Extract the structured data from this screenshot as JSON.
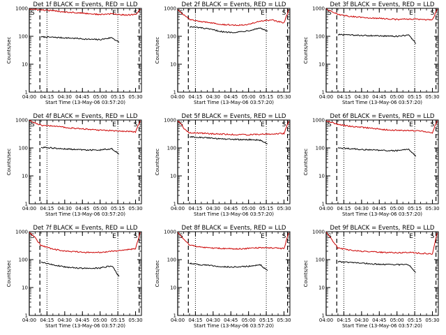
{
  "figure": {
    "background": "#ffffff",
    "colors": {
      "events": "#000000",
      "lld": "#cc0000"
    }
  },
  "chart_data": [
    {
      "type": "line",
      "title": "Det 1f BLACK = Events, RED = LLD",
      "xlabel": "Start Time (13-May-06 03:57:20)",
      "ylabel": "Counts/sec",
      "xlim": [
        "04:00",
        "05:35"
      ],
      "ylim": [
        1,
        1000
      ],
      "yscale": "log",
      "xticks": [
        "04:00",
        "04:15",
        "04:30",
        "04:45",
        "05:00",
        "05:15",
        "05:30"
      ],
      "yticks": [
        "1",
        "10",
        "100",
        "1000"
      ],
      "markers": [
        {
          "label": "S",
          "time": "04:00",
          "style": "solid"
        },
        {
          "label": "",
          "time": "04:09",
          "style": "dashed"
        },
        {
          "label": "",
          "time": "04:15",
          "style": "dotted"
        },
        {
          "label": "E",
          "time": "05:15",
          "style": "dotted"
        },
        {
          "label": "S",
          "time": "05:33",
          "style": "dashed"
        }
      ],
      "series": [
        {
          "name": "Events",
          "color": "#000000",
          "x": [
            "04:10",
            "04:20",
            "04:30",
            "04:40",
            "04:50",
            "05:00",
            "05:10",
            "05:16"
          ],
          "y": [
            95,
            92,
            88,
            84,
            78,
            76,
            90,
            60
          ]
        },
        {
          "name": "LLD",
          "color": "#cc0000",
          "x": [
            "04:00",
            "04:10",
            "04:20",
            "04:30",
            "04:40",
            "04:50",
            "05:00",
            "05:10",
            "05:20",
            "05:30",
            "05:34"
          ],
          "y": [
            950,
            880,
            820,
            750,
            700,
            650,
            600,
            640,
            580,
            600,
            950
          ]
        }
      ]
    },
    {
      "type": "line",
      "title": "Det 2f BLACK = Events, RED = LLD",
      "xlabel": "Start Time (13-May-06 03:57:20)",
      "ylabel": "Counts/sec",
      "xlim": [
        "04:00",
        "05:35"
      ],
      "ylim": [
        1,
        1000
      ],
      "yscale": "log",
      "xticks": [
        "04:00",
        "04:15",
        "04:30",
        "04:45",
        "05:00",
        "05:15",
        "05:30"
      ],
      "yticks": [
        "1",
        "10",
        "100",
        "1000"
      ],
      "markers": [
        {
          "label": "S",
          "time": "04:00",
          "style": "solid"
        },
        {
          "label": "",
          "time": "04:09",
          "style": "dashed"
        },
        {
          "label": "",
          "time": "04:15",
          "style": "dotted"
        },
        {
          "label": "E",
          "time": "05:15",
          "style": "dotted"
        },
        {
          "label": "S",
          "time": "05:33",
          "style": "dashed"
        }
      ],
      "series": [
        {
          "name": "Events",
          "color": "#000000",
          "x": [
            "04:10",
            "04:20",
            "04:30",
            "04:40",
            "04:50",
            "05:00",
            "05:10",
            "05:16"
          ],
          "y": [
            220,
            200,
            170,
            140,
            140,
            160,
            200,
            150
          ]
        },
        {
          "name": "LLD",
          "color": "#cc0000",
          "x": [
            "04:00",
            "04:05",
            "04:10",
            "04:20",
            "04:30",
            "04:40",
            "04:50",
            "05:00",
            "05:10",
            "05:20",
            "05:30",
            "05:34"
          ],
          "y": [
            900,
            600,
            400,
            330,
            300,
            260,
            250,
            270,
            350,
            380,
            300,
            900
          ]
        }
      ]
    },
    {
      "type": "line",
      "title": "Det 3f BLACK = Events, RED = LLD",
      "xlabel": "Start Time (13-May-06 03:57:20)",
      "ylabel": "Counts/sec",
      "xlim": [
        "04:00",
        "05:35"
      ],
      "ylim": [
        1,
        1000
      ],
      "yscale": "log",
      "xticks": [
        "04:00",
        "04:15",
        "04:30",
        "04:45",
        "05:00",
        "05:15",
        "05:30"
      ],
      "yticks": [
        "1",
        "10",
        "100",
        "1000"
      ],
      "markers": [
        {
          "label": "S",
          "time": "04:00",
          "style": "solid"
        },
        {
          "label": "",
          "time": "04:09",
          "style": "dashed"
        },
        {
          "label": "",
          "time": "04:15",
          "style": "dotted"
        },
        {
          "label": "E",
          "time": "05:15",
          "style": "dotted"
        },
        {
          "label": "S",
          "time": "05:33",
          "style": "dashed"
        }
      ],
      "series": [
        {
          "name": "Events",
          "color": "#000000",
          "x": [
            "04:10",
            "04:20",
            "04:30",
            "04:40",
            "04:50",
            "05:00",
            "05:10",
            "05:16"
          ],
          "y": [
            115,
            110,
            108,
            105,
            102,
            100,
            110,
            55
          ]
        },
        {
          "name": "LLD",
          "color": "#cc0000",
          "x": [
            "04:00",
            "04:10",
            "04:20",
            "04:30",
            "04:40",
            "04:50",
            "05:00",
            "05:10",
            "05:20",
            "05:30",
            "05:34"
          ],
          "y": [
            950,
            600,
            520,
            480,
            450,
            430,
            400,
            420,
            400,
            380,
            950
          ]
        }
      ]
    },
    {
      "type": "line",
      "title": "Det 4f BLACK = Events, RED = LLD",
      "xlabel": "Start Time (13-May-06 03:57:20)",
      "ylabel": "Counts/sec",
      "xlim": [
        "04:00",
        "05:35"
      ],
      "ylim": [
        1,
        1000
      ],
      "yscale": "log",
      "xticks": [
        "04:00",
        "04:15",
        "04:30",
        "04:45",
        "05:00",
        "05:15",
        "05:30"
      ],
      "yticks": [
        "1",
        "10",
        "100",
        "1000"
      ],
      "markers": [
        {
          "label": "S",
          "time": "04:00",
          "style": "solid"
        },
        {
          "label": "",
          "time": "04:09",
          "style": "dashed"
        },
        {
          "label": "",
          "time": "04:15",
          "style": "dotted"
        },
        {
          "label": "E",
          "time": "05:15",
          "style": "dotted"
        },
        {
          "label": "S",
          "time": "05:33",
          "style": "dashed"
        }
      ],
      "series": [
        {
          "name": "Events",
          "color": "#000000",
          "x": [
            "04:10",
            "04:20",
            "04:30",
            "04:40",
            "04:50",
            "05:00",
            "05:10",
            "05:16"
          ],
          "y": [
            105,
            100,
            92,
            88,
            85,
            84,
            95,
            60
          ]
        },
        {
          "name": "LLD",
          "color": "#cc0000",
          "x": [
            "04:00",
            "04:10",
            "04:20",
            "04:30",
            "04:40",
            "04:50",
            "05:00",
            "05:10",
            "05:20",
            "05:30",
            "05:34"
          ],
          "y": [
            950,
            650,
            600,
            550,
            500,
            470,
            430,
            420,
            400,
            380,
            950
          ]
        }
      ]
    },
    {
      "type": "line",
      "title": "Det 5f BLACK = Events, RED = LLD",
      "xlabel": "Start Time (13-May-06 03:57:20)",
      "ylabel": "Counts/sec",
      "xlim": [
        "04:00",
        "05:35"
      ],
      "ylim": [
        1,
        1000
      ],
      "yscale": "log",
      "xticks": [
        "04:00",
        "04:15",
        "04:30",
        "04:45",
        "05:00",
        "05:15",
        "05:30"
      ],
      "yticks": [
        "1",
        "10",
        "100",
        "1000"
      ],
      "markers": [
        {
          "label": "S",
          "time": "04:00",
          "style": "solid"
        },
        {
          "label": "",
          "time": "04:09",
          "style": "dashed"
        },
        {
          "label": "",
          "time": "04:15",
          "style": "dotted"
        },
        {
          "label": "E",
          "time": "05:15",
          "style": "dotted"
        },
        {
          "label": "S",
          "time": "05:33",
          "style": "dashed"
        }
      ],
      "series": [
        {
          "name": "Events",
          "color": "#000000",
          "x": [
            "04:10",
            "04:20",
            "04:30",
            "04:40",
            "04:50",
            "05:00",
            "05:10",
            "05:16"
          ],
          "y": [
            250,
            240,
            220,
            210,
            200,
            200,
            190,
            140
          ]
        },
        {
          "name": "LLD",
          "color": "#cc0000",
          "x": [
            "04:00",
            "04:03",
            "04:06",
            "04:10",
            "04:20",
            "04:30",
            "04:40",
            "04:50",
            "05:00",
            "05:10",
            "05:20",
            "05:30",
            "05:34"
          ],
          "y": [
            950,
            700,
            450,
            350,
            340,
            320,
            310,
            300,
            300,
            310,
            320,
            330,
            900
          ]
        }
      ]
    },
    {
      "type": "line",
      "title": "Det 6f BLACK = Events, RED = LLD",
      "xlabel": "Start Time (13-May-06 03:57:20)",
      "ylabel": "Counts/sec",
      "xlim": [
        "04:00",
        "05:35"
      ],
      "ylim": [
        1,
        1000
      ],
      "yscale": "log",
      "xticks": [
        "04:00",
        "04:15",
        "04:30",
        "04:45",
        "05:00",
        "05:15",
        "05:30"
      ],
      "yticks": [
        "1",
        "10",
        "100",
        "1000"
      ],
      "markers": [
        {
          "label": "S",
          "time": "04:00",
          "style": "solid"
        },
        {
          "label": "",
          "time": "04:09",
          "style": "dashed"
        },
        {
          "label": "",
          "time": "04:15",
          "style": "dotted"
        },
        {
          "label": "E",
          "time": "05:15",
          "style": "dotted"
        },
        {
          "label": "S",
          "time": "05:33",
          "style": "dashed"
        }
      ],
      "series": [
        {
          "name": "Events",
          "color": "#000000",
          "x": [
            "04:10",
            "04:20",
            "04:30",
            "04:40",
            "04:50",
            "05:00",
            "05:10",
            "05:16"
          ],
          "y": [
            100,
            95,
            88,
            85,
            80,
            80,
            88,
            50
          ]
        },
        {
          "name": "LLD",
          "color": "#cc0000",
          "x": [
            "04:00",
            "04:10",
            "04:20",
            "04:30",
            "04:40",
            "04:50",
            "05:00",
            "05:10",
            "05:20",
            "05:30",
            "05:34"
          ],
          "y": [
            950,
            700,
            600,
            550,
            500,
            450,
            430,
            420,
            400,
            350,
            950
          ]
        }
      ]
    },
    {
      "type": "line",
      "title": "Det 7f BLACK = Events, RED = LLD",
      "xlabel": "Start Time (13-May-06 03:57:20)",
      "ylabel": "Counts/sec",
      "xlim": [
        "04:00",
        "05:35"
      ],
      "ylim": [
        1,
        1000
      ],
      "yscale": "log",
      "xticks": [
        "04:00",
        "04:15",
        "04:30",
        "04:45",
        "05:00",
        "05:15",
        "05:30"
      ],
      "yticks": [
        "1",
        "10",
        "100",
        "1000"
      ],
      "markers": [
        {
          "label": "S",
          "time": "04:00",
          "style": "solid"
        },
        {
          "label": "",
          "time": "04:09",
          "style": "dashed"
        },
        {
          "label": "",
          "time": "04:15",
          "style": "dotted"
        },
        {
          "label": "E",
          "time": "05:15",
          "style": "dotted"
        },
        {
          "label": "S",
          "time": "05:33",
          "style": "dashed"
        }
      ],
      "series": [
        {
          "name": "Events",
          "color": "#000000",
          "x": [
            "04:10",
            "04:20",
            "04:30",
            "04:40",
            "04:50",
            "05:00",
            "05:10",
            "05:16"
          ],
          "y": [
            80,
            65,
            55,
            50,
            48,
            50,
            60,
            25
          ]
        },
        {
          "name": "LLD",
          "color": "#cc0000",
          "x": [
            "04:00",
            "04:05",
            "04:10",
            "04:20",
            "04:30",
            "04:40",
            "04:50",
            "05:00",
            "05:10",
            "05:20",
            "05:30",
            "05:34"
          ],
          "y": [
            950,
            600,
            320,
            240,
            200,
            190,
            180,
            180,
            200,
            220,
            250,
            950
          ]
        }
      ]
    },
    {
      "type": "line",
      "title": "Det 8f BLACK = Events, RED = LLD",
      "xlabel": "Start Time (13-May-06 03:57:20)",
      "ylabel": "Counts/sec",
      "xlim": [
        "04:00",
        "05:35"
      ],
      "ylim": [
        1,
        1000
      ],
      "yscale": "log",
      "xticks": [
        "04:00",
        "04:15",
        "04:30",
        "04:45",
        "05:00",
        "05:15",
        "05:30"
      ],
      "yticks": [
        "1",
        "10",
        "100",
        "1000"
      ],
      "markers": [
        {
          "label": "S",
          "time": "04:00",
          "style": "solid"
        },
        {
          "label": "",
          "time": "04:09",
          "style": "dashed"
        },
        {
          "label": "",
          "time": "04:15",
          "style": "dotted"
        },
        {
          "label": "E",
          "time": "05:15",
          "style": "dotted"
        },
        {
          "label": "S",
          "time": "05:33",
          "style": "dashed"
        }
      ],
      "series": [
        {
          "name": "Events",
          "color": "#000000",
          "x": [
            "04:10",
            "04:20",
            "04:30",
            "04:40",
            "04:50",
            "05:00",
            "05:10",
            "05:16"
          ],
          "y": [
            75,
            65,
            60,
            55,
            55,
            58,
            65,
            40
          ]
        },
        {
          "name": "LLD",
          "color": "#cc0000",
          "x": [
            "04:00",
            "04:05",
            "04:10",
            "04:20",
            "04:30",
            "04:40",
            "04:50",
            "05:00",
            "05:10",
            "05:20",
            "05:30",
            "05:34"
          ],
          "y": [
            950,
            550,
            330,
            280,
            260,
            250,
            240,
            250,
            270,
            260,
            250,
            900
          ]
        }
      ]
    },
    {
      "type": "line",
      "title": "Det 9f BLACK = Events, RED = LLD",
      "xlabel": "Start Time (13-May-06 03:57:20)",
      "ylabel": "Counts/sec",
      "xlim": [
        "04:00",
        "05:35"
      ],
      "ylim": [
        1,
        1000
      ],
      "yscale": "log",
      "xticks": [
        "04:00",
        "04:15",
        "04:30",
        "04:45",
        "05:00",
        "05:15",
        "05:30"
      ],
      "yticks": [
        "1",
        "10",
        "100",
        "1000"
      ],
      "markers": [
        {
          "label": "S",
          "time": "04:00",
          "style": "solid"
        },
        {
          "label": "",
          "time": "04:09",
          "style": "dashed"
        },
        {
          "label": "",
          "time": "04:15",
          "style": "dotted"
        },
        {
          "label": "E",
          "time": "05:15",
          "style": "dotted"
        },
        {
          "label": "S",
          "time": "05:33",
          "style": "dashed"
        }
      ],
      "series": [
        {
          "name": "Events",
          "color": "#000000",
          "x": [
            "04:10",
            "04:20",
            "04:30",
            "04:40",
            "04:50",
            "05:00",
            "05:10",
            "05:16"
          ],
          "y": [
            85,
            80,
            75,
            70,
            68,
            66,
            65,
            35
          ]
        },
        {
          "name": "LLD",
          "color": "#cc0000",
          "x": [
            "04:00",
            "04:05",
            "04:10",
            "04:20",
            "04:30",
            "04:40",
            "04:50",
            "05:00",
            "05:10",
            "05:20",
            "05:30",
            "05:34"
          ],
          "y": [
            950,
            500,
            260,
            220,
            200,
            190,
            180,
            175,
            180,
            170,
            160,
            900
          ]
        }
      ]
    }
  ]
}
